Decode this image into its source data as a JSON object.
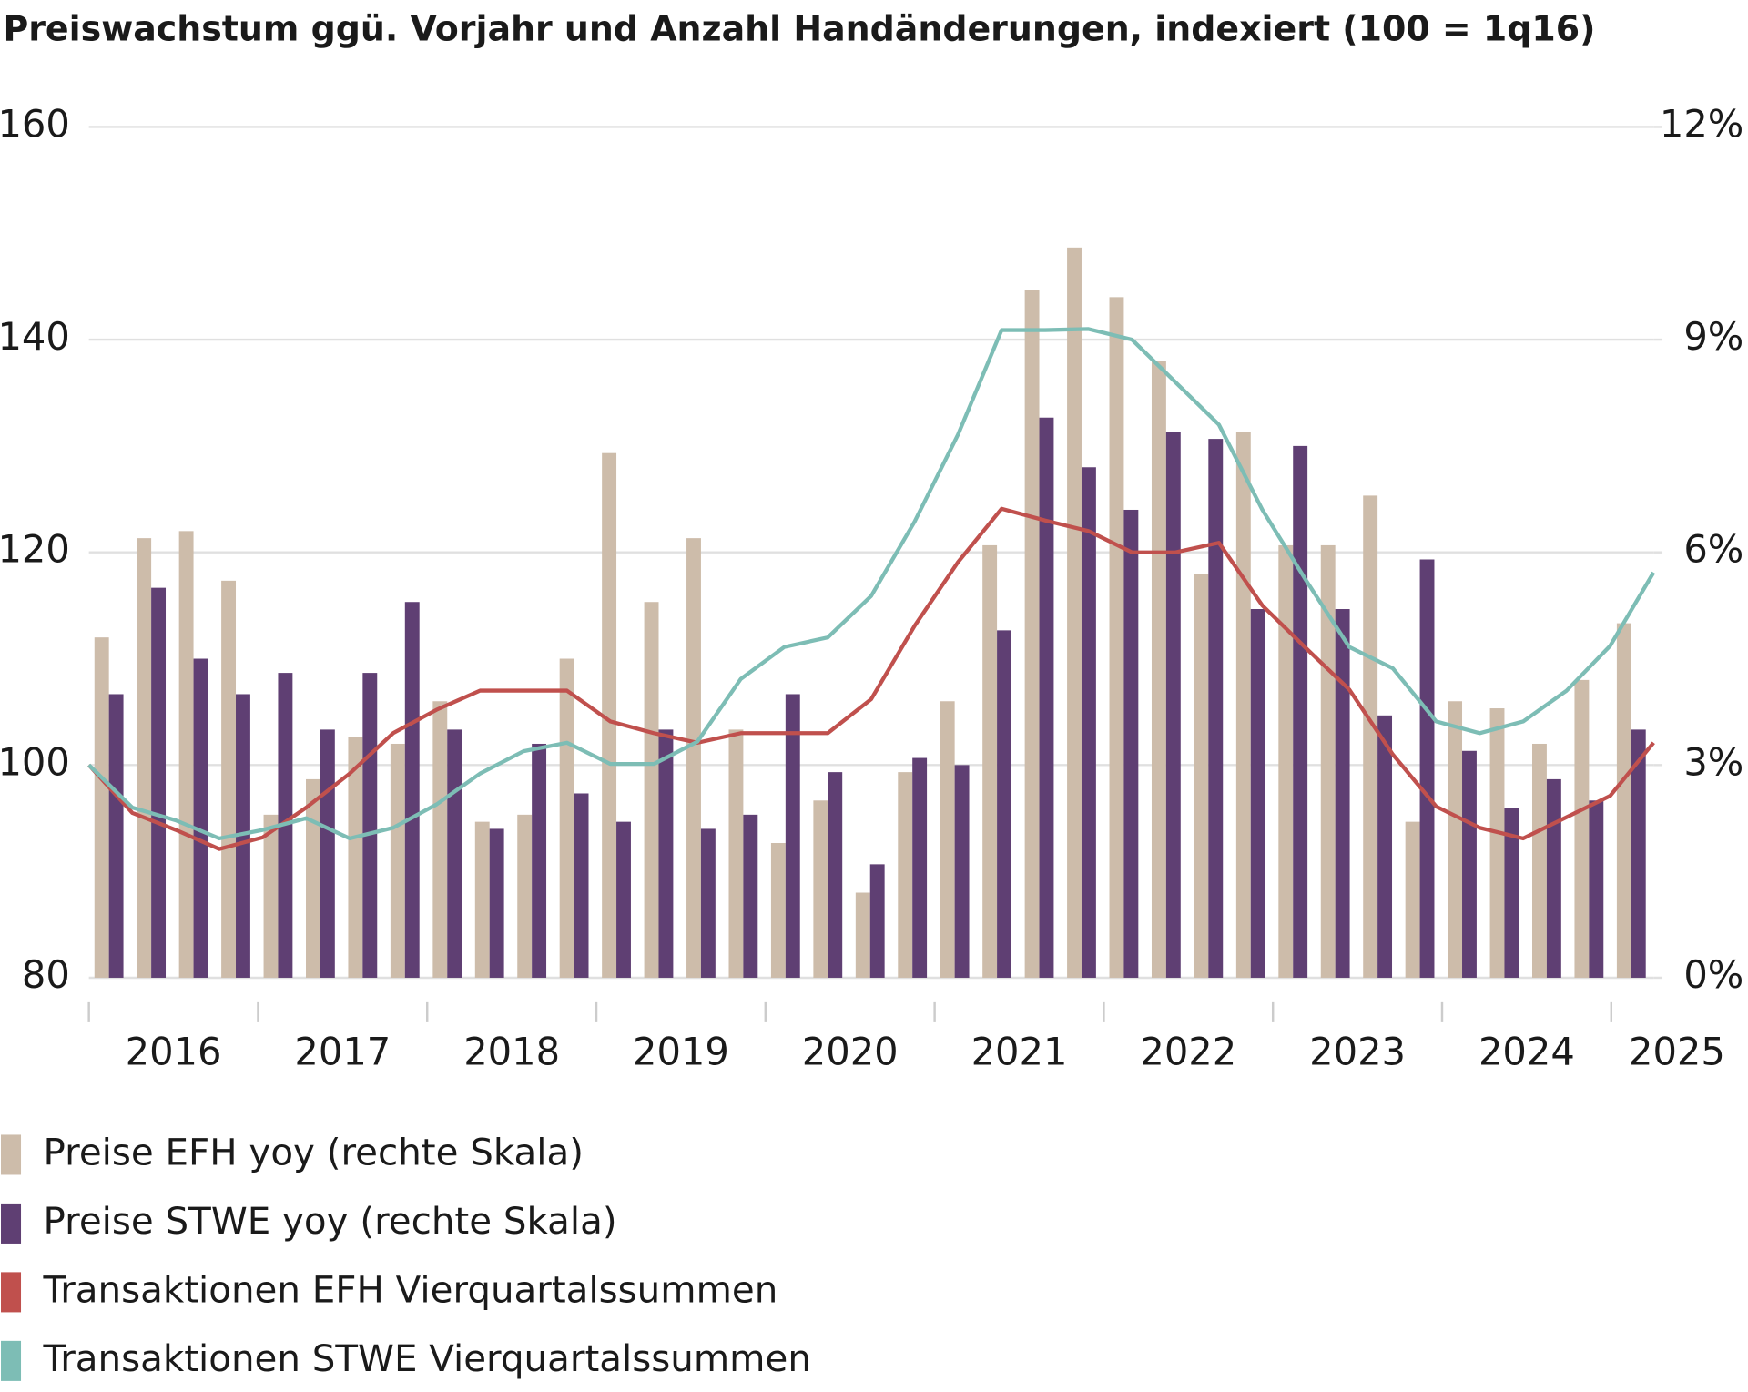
{
  "chart_data": {
    "type": "combo",
    "title": "Preiswachstum ggü. Vorjahr und Anzahl Handänderungen, indexiert (100 = 1q16)",
    "categories": [
      null,
      null,
      null,
      null,
      null,
      null,
      null,
      null,
      null,
      null,
      null,
      null,
      null,
      null,
      null,
      null,
      null,
      null,
      null,
      null,
      null,
      null,
      null,
      null,
      null,
      null,
      null,
      null,
      null,
      null,
      null,
      null,
      null,
      null,
      null,
      null,
      null
    ],
    "year_labels": [
      "2016",
      "2017",
      "2018",
      "2019",
      "2020",
      "2021",
      "2022",
      "2023",
      "2024",
      "2025"
    ],
    "ylim": [
      80,
      160
    ],
    "yticks": [
      80,
      100,
      120,
      140,
      160
    ],
    "y2lim": [
      0,
      12
    ],
    "y2ticks": [
      {
        "value": 0,
        "label": "0%"
      },
      {
        "value": 3,
        "label": "3%"
      },
      {
        "value": 6,
        "label": "6%"
      },
      {
        "value": 9,
        "label": "9%"
      },
      {
        "value": 12,
        "label": "12%"
      }
    ],
    "grid": true,
    "series": [
      {
        "name": "Preise EFH yoy (rechte Skala)",
        "type": "bar",
        "axis": "y2",
        "color": "#cdbcaa",
        "values": [
          4.8,
          6.2,
          6.3,
          5.6,
          2.3,
          2.8,
          3.4,
          3.3,
          3.9,
          2.2,
          2.3,
          4.5,
          7.4,
          5.3,
          6.2,
          3.5,
          1.9,
          2.5,
          1.2,
          2.9,
          3.9,
          6.1,
          9.7,
          10.3,
          9.6,
          8.7,
          5.7,
          7.7,
          6.1,
          6.1,
          6.8,
          2.2,
          3.9,
          3.8,
          3.3,
          4.2,
          5.0
        ]
      },
      {
        "name": "Preise STWE yoy (rechte Skala)",
        "type": "bar",
        "axis": "y2",
        "color": "#5f3f73",
        "values": [
          4.0,
          5.5,
          4.5,
          4.0,
          4.3,
          3.5,
          4.3,
          5.3,
          3.5,
          2.1,
          3.3,
          2.6,
          2.2,
          3.5,
          2.1,
          2.3,
          4.0,
          2.9,
          1.6,
          3.1,
          3.0,
          4.9,
          7.9,
          7.2,
          6.6,
          7.7,
          7.6,
          5.2,
          7.5,
          5.2,
          3.7,
          5.9,
          3.2,
          2.4,
          2.8,
          2.5,
          3.5
        ]
      },
      {
        "name": "Transaktionen EFH Vierquartalssummen",
        "type": "line",
        "color": "#c0504d",
        "values": [
          100,
          95.5,
          93.9,
          92.1,
          93.2,
          96,
          99.2,
          103,
          105.2,
          107,
          107,
          107,
          104.1,
          103,
          102.1,
          103,
          103,
          103,
          106.2,
          113.1,
          119.1,
          124.1,
          123,
          122,
          120,
          120,
          120.9,
          115,
          111,
          107.1,
          101,
          96.1,
          94.1,
          93.1,
          95.1,
          97.1,
          102.1
        ]
      },
      {
        "name": "Transaktionen STWE Vierquartalssummen",
        "type": "line",
        "color": "#7dbdb5",
        "values": [
          100,
          96,
          94.8,
          93.1,
          93.9,
          95,
          93.1,
          94.1,
          96.3,
          99.2,
          101.3,
          102.1,
          100.1,
          100.1,
          102.2,
          108.1,
          111.1,
          112,
          115.9,
          122.9,
          131.1,
          140.9,
          140.9,
          141,
          140,
          136,
          132,
          124,
          117.4,
          111.1,
          109.1,
          104.1,
          103,
          104.1,
          107,
          111.2,
          118.1
        ]
      }
    ]
  }
}
